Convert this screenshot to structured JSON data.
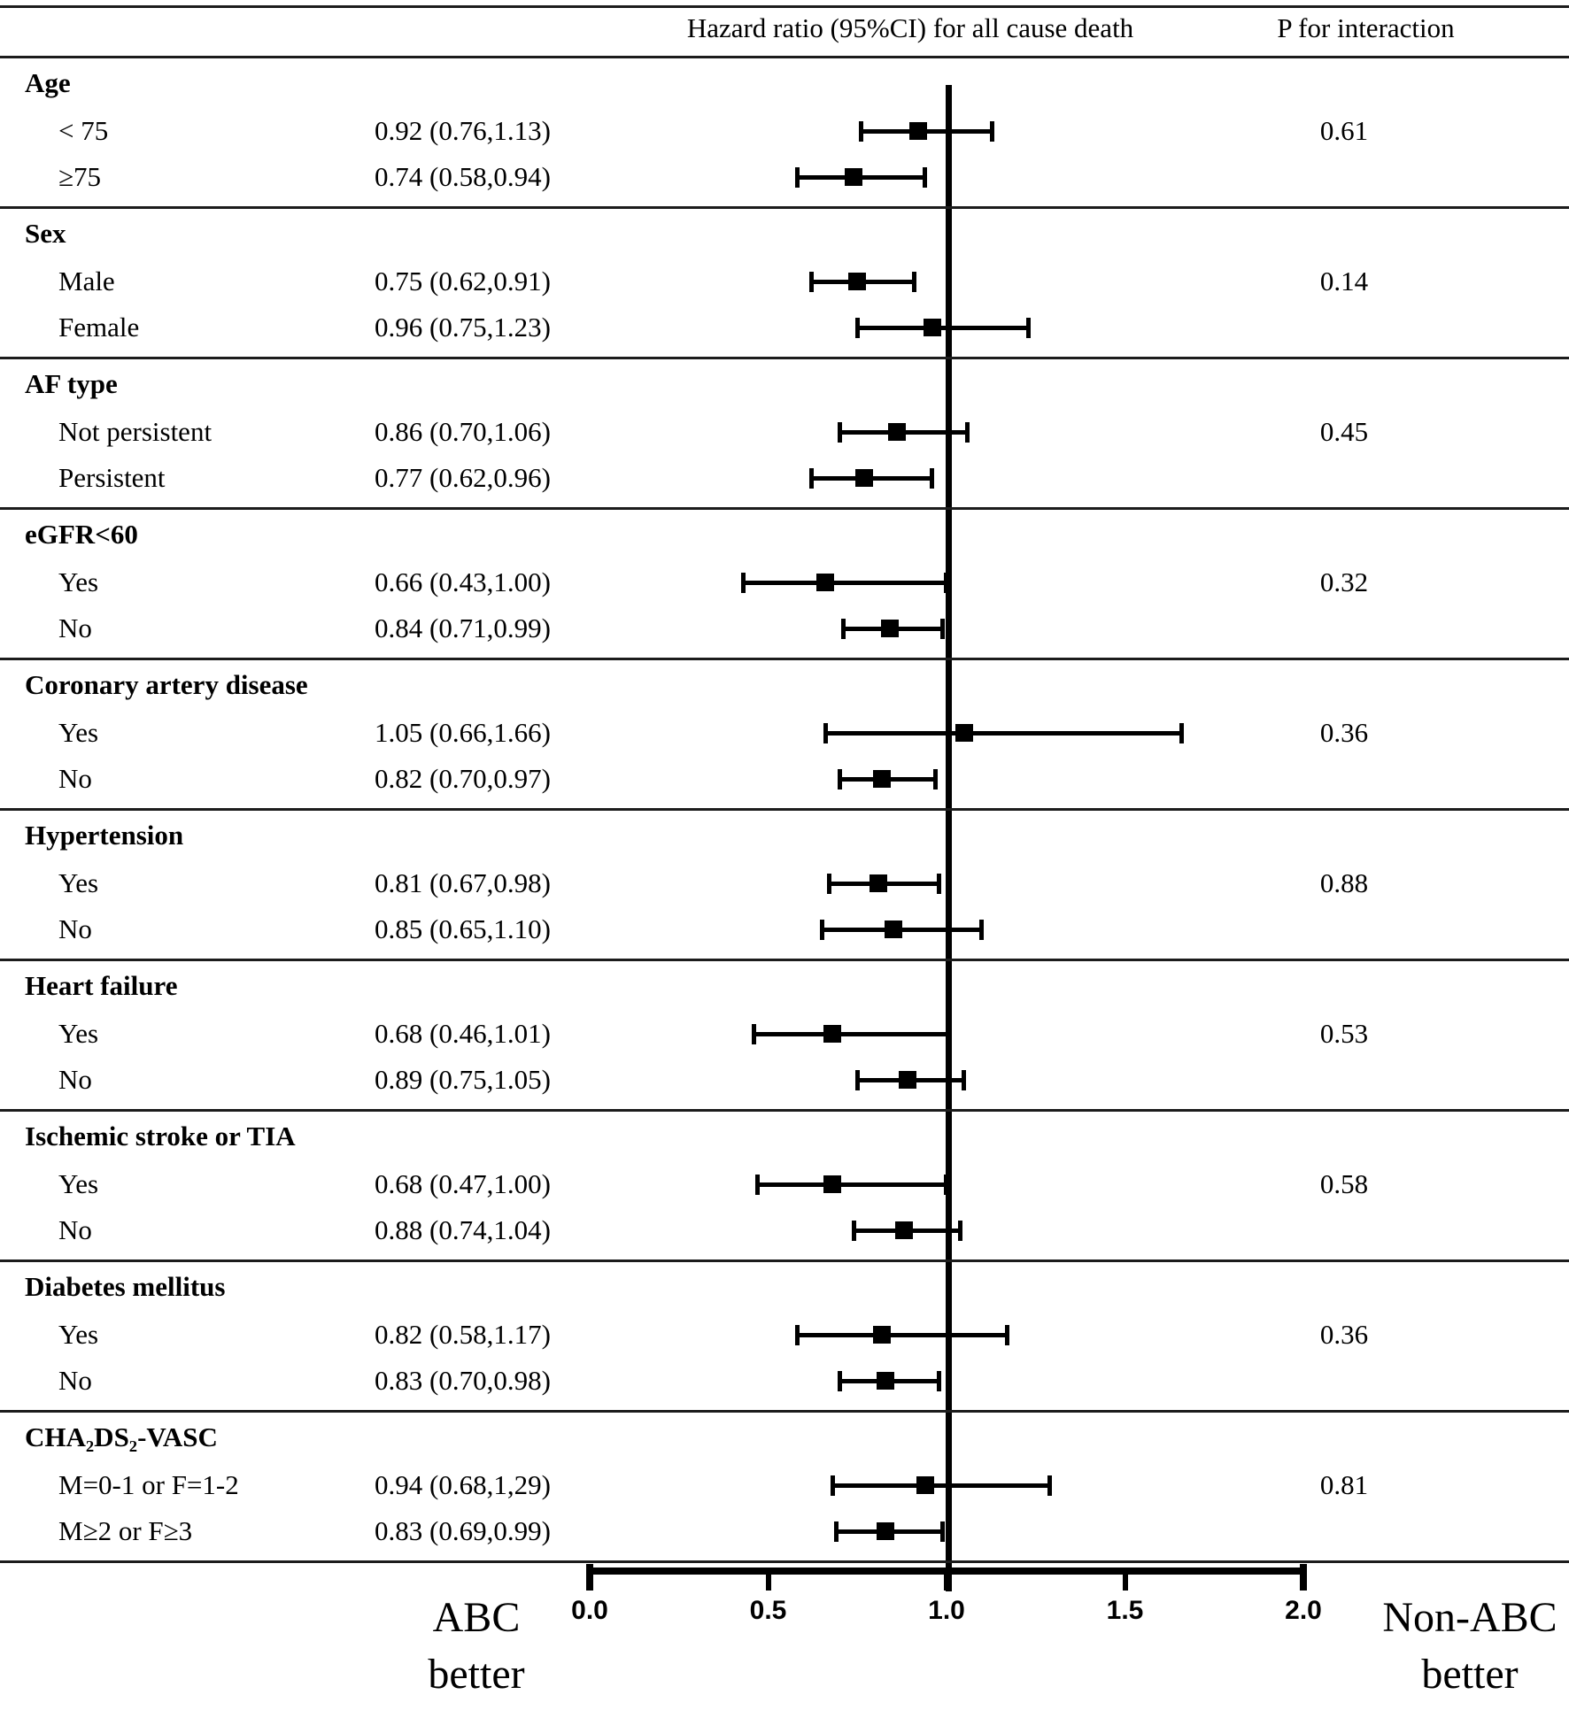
{
  "header": {
    "hr_col": "Hazard ratio (95%CI) for all cause death",
    "p_col": "P for interaction"
  },
  "axis": {
    "min": 0.0,
    "max": 2.0,
    "ticks": [
      0.0,
      0.5,
      1.0,
      1.5,
      2.0
    ],
    "tick_labels": [
      "0.0",
      "0.5",
      "1.0",
      "1.5",
      "2.0"
    ],
    "reference_value": 1.0,
    "left_label": {
      "line1": "ABC",
      "line2": "better"
    },
    "right_label": {
      "line1": "Non-ABC",
      "line2": "better"
    }
  },
  "chart_data": {
    "type": "forest",
    "title": "Hazard ratio (95%CI) for all cause death",
    "xlim": [
      0.0,
      2.0
    ],
    "reference_line": 1.0,
    "p_column_title": "P for interaction",
    "groups": [
      {
        "name": "Age",
        "p_for_interaction": "0.61",
        "rows": [
          {
            "label": "< 75",
            "hr": 0.92,
            "lo": 0.76,
            "hi": 1.13,
            "text": "0.92 (0.76,1.13)"
          },
          {
            "label": "≥75",
            "hr": 0.74,
            "lo": 0.58,
            "hi": 0.94,
            "text": "0.74 (0.58,0.94)"
          }
        ]
      },
      {
        "name": "Sex",
        "p_for_interaction": "0.14",
        "rows": [
          {
            "label": "Male",
            "hr": 0.75,
            "lo": 0.62,
            "hi": 0.91,
            "text": "0.75 (0.62,0.91)"
          },
          {
            "label": "Female",
            "hr": 0.96,
            "lo": 0.75,
            "hi": 1.23,
            "text": "0.96 (0.75,1.23)"
          }
        ]
      },
      {
        "name": "AF type",
        "p_for_interaction": "0.45",
        "rows": [
          {
            "label": "Not persistent",
            "hr": 0.86,
            "lo": 0.7,
            "hi": 1.06,
            "text": "0.86 (0.70,1.06)"
          },
          {
            "label": "Persistent",
            "hr": 0.77,
            "lo": 0.62,
            "hi": 0.96,
            "text": "0.77 (0.62,0.96)"
          }
        ]
      },
      {
        "name": "eGFR<60",
        "p_for_interaction": "0.32",
        "rows": [
          {
            "label": "Yes",
            "hr": 0.66,
            "lo": 0.43,
            "hi": 1.0,
            "text": "0.66 (0.43,1.00)"
          },
          {
            "label": "No",
            "hr": 0.84,
            "lo": 0.71,
            "hi": 0.99,
            "text": "0.84 (0.71,0.99)"
          }
        ]
      },
      {
        "name": "Coronary artery disease",
        "p_for_interaction": "0.36",
        "rows": [
          {
            "label": "Yes",
            "hr": 1.05,
            "lo": 0.66,
            "hi": 1.66,
            "text": "1.05 (0.66,1.66)"
          },
          {
            "label": "No",
            "hr": 0.82,
            "lo": 0.7,
            "hi": 0.97,
            "text": "0.82 (0.70,0.97)"
          }
        ]
      },
      {
        "name": "Hypertension",
        "p_for_interaction": "0.88",
        "rows": [
          {
            "label": "Yes",
            "hr": 0.81,
            "lo": 0.67,
            "hi": 0.98,
            "text": "0.81 (0.67,0.98)"
          },
          {
            "label": "No",
            "hr": 0.85,
            "lo": 0.65,
            "hi": 1.1,
            "text": "0.85 (0.65,1.10)"
          }
        ]
      },
      {
        "name": "Heart failure",
        "p_for_interaction": "0.53",
        "rows": [
          {
            "label": "Yes",
            "hr": 0.68,
            "lo": 0.46,
            "hi": 1.01,
            "text": "0.68 (0.46,1.01)"
          },
          {
            "label": "No",
            "hr": 0.89,
            "lo": 0.75,
            "hi": 1.05,
            "text": "0.89 (0.75,1.05)"
          }
        ]
      },
      {
        "name": "Ischemic stroke or TIA",
        "p_for_interaction": "0.58",
        "rows": [
          {
            "label": "Yes",
            "hr": 0.68,
            "lo": 0.47,
            "hi": 1.0,
            "text": "0.68 (0.47,1.00)"
          },
          {
            "label": "No",
            "hr": 0.88,
            "lo": 0.74,
            "hi": 1.04,
            "text": "0.88 (0.74,1.04)"
          }
        ]
      },
      {
        "name": "Diabetes mellitus",
        "p_for_interaction": "0.36",
        "rows": [
          {
            "label": "Yes",
            "hr": 0.82,
            "lo": 0.58,
            "hi": 1.17,
            "text": "0.82 (0.58,1.17)"
          },
          {
            "label": "No",
            "hr": 0.83,
            "lo": 0.7,
            "hi": 0.98,
            "text": "0.83 (0.70,0.98)"
          }
        ]
      },
      {
        "name": "CHA₂DS₂-VASC",
        "p_for_interaction": "0.81",
        "rows": [
          {
            "label": "M=0-1 or F=1-2",
            "hr": 0.94,
            "lo": 0.68,
            "hi": 1.29,
            "text": "0.94 (0.68,1,29)"
          },
          {
            "label": "M≥2 or F≥3",
            "hr": 0.83,
            "lo": 0.69,
            "hi": 0.99,
            "text": "0.83 (0.69,0.99)"
          }
        ]
      }
    ]
  }
}
